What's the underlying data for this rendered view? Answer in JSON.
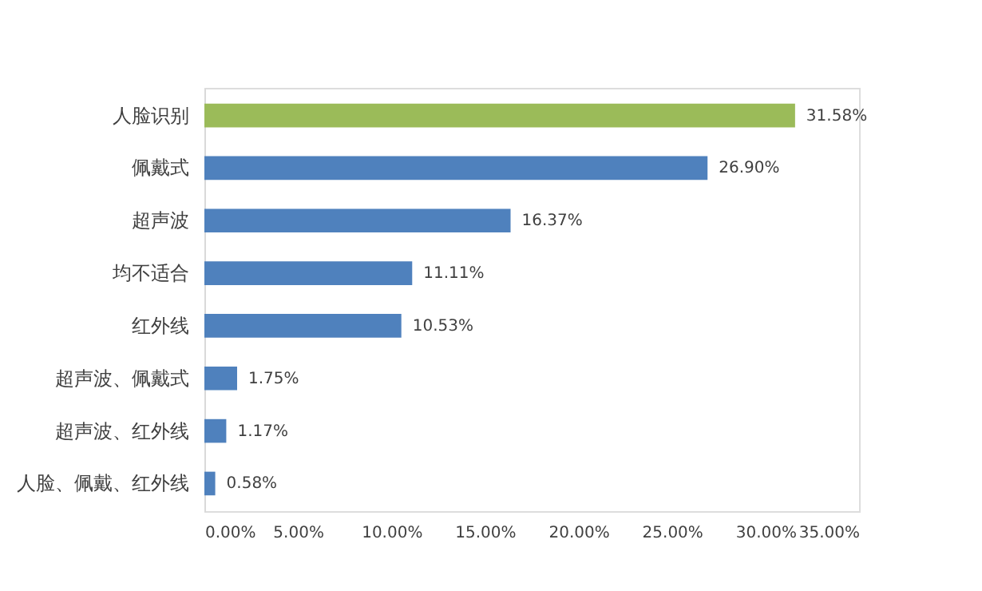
{
  "chart_data": {
    "type": "bar",
    "orientation": "horizontal",
    "categories": [
      "人脸识别",
      "佩戴式",
      "超声波",
      "均不适合",
      "红外线",
      "超声波、佩戴式",
      "超声波、红外线",
      "人脸、佩戴、红外线"
    ],
    "values": [
      31.58,
      26.9,
      16.37,
      11.11,
      10.53,
      1.75,
      1.17,
      0.58
    ],
    "colors": [
      "#9bbb59",
      "#4f81bd",
      "#4f81bd",
      "#4f81bd",
      "#4f81bd",
      "#4f81bd",
      "#4f81bd",
      "#4f81bd"
    ],
    "value_labels": [
      "31.58%",
      "26.90%",
      "16.37%",
      "11.11%",
      "10.53%",
      "1.75%",
      "1.17%",
      "0.58%"
    ],
    "xlim": [
      0,
      35
    ],
    "xticks": [
      {
        "value": 0,
        "label": "0.00%"
      },
      {
        "value": 5,
        "label": "5.00%"
      },
      {
        "value": 10,
        "label": "10.00%"
      },
      {
        "value": 15,
        "label": "15.00%"
      },
      {
        "value": 20,
        "label": "20.00%"
      },
      {
        "value": 25,
        "label": "25.00%"
      },
      {
        "value": 30,
        "label": "30.00%"
      },
      {
        "value": 35,
        "label": "35.00%"
      }
    ],
    "grid": false
  }
}
